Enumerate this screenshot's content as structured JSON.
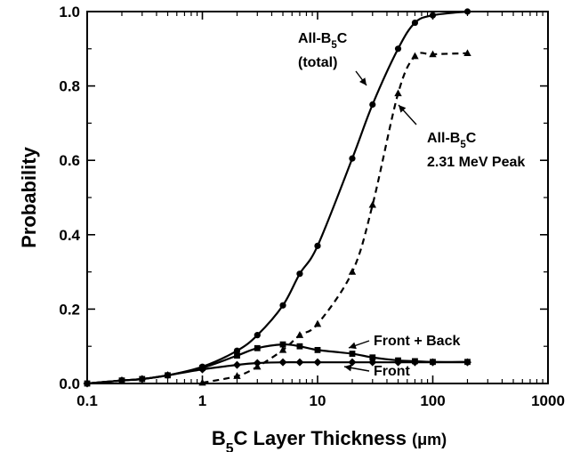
{
  "chart_data": {
    "type": "line",
    "x_scale": "log",
    "xlim": [
      0.1,
      1000
    ],
    "ylim": [
      0.0,
      1.0
    ],
    "x_ticks": [
      "0.1",
      "1",
      "10",
      "100",
      "1000"
    ],
    "y_ticks": [
      "0.0",
      "0.2",
      "0.4",
      "0.6",
      "0.8",
      "1.0"
    ],
    "grid": false,
    "xlabel": {
      "main": "B",
      "sub": "5",
      "rest": "C Layer Thickness ",
      "unit": "(μm)"
    },
    "ylabel": "Probability",
    "series": [
      {
        "marker": "circle",
        "line": "solid",
        "x": [
          0.1,
          0.2,
          0.3,
          0.5,
          1,
          2,
          3,
          5,
          7,
          10,
          20,
          30,
          50,
          70,
          100,
          200
        ],
        "y": [
          0.0,
          0.008,
          0.012,
          0.022,
          0.045,
          0.088,
          0.13,
          0.21,
          0.295,
          0.37,
          0.605,
          0.75,
          0.9,
          0.97,
          0.99,
          1.0
        ]
      },
      {
        "marker": "triangle",
        "line": "dashed",
        "x": [
          1,
          2,
          3,
          5,
          7,
          10,
          20,
          30,
          50,
          70,
          100,
          200
        ],
        "y": [
          0.002,
          0.02,
          0.045,
          0.09,
          0.13,
          0.16,
          0.3,
          0.48,
          0.78,
          0.88,
          0.885,
          0.888
        ]
      },
      {
        "marker": "square",
        "line": "solid",
        "x": [
          0.1,
          0.2,
          0.3,
          0.5,
          1,
          2,
          3,
          5,
          7,
          10,
          20,
          30,
          50,
          70,
          100,
          200
        ],
        "y": [
          0.0,
          0.008,
          0.012,
          0.022,
          0.042,
          0.075,
          0.095,
          0.105,
          0.1,
          0.09,
          0.08,
          0.07,
          0.062,
          0.06,
          0.058,
          0.058
        ]
      },
      {
        "marker": "diamond",
        "line": "solid",
        "x": [
          0.1,
          0.2,
          0.3,
          0.5,
          1,
          2,
          3,
          5,
          7,
          10,
          20,
          30,
          50,
          70,
          100,
          200
        ],
        "y": [
          0.0,
          0.008,
          0.012,
          0.022,
          0.038,
          0.05,
          0.055,
          0.057,
          0.057,
          0.057,
          0.057,
          0.057,
          0.057,
          0.057,
          0.057,
          0.057
        ]
      }
    ],
    "annotations": [
      {
        "lines": [
          {
            "main": "All-B",
            "sub": "5",
            "rest": "C"
          },
          {
            "main": "(total)"
          }
        ]
      },
      {
        "lines": [
          {
            "main": "All-B",
            "sub": "5",
            "rest": "C"
          },
          {
            "main": "2.31 MeV Peak"
          }
        ]
      },
      {
        "lines": [
          {
            "main": "Front + Back"
          }
        ]
      },
      {
        "lines": [
          {
            "main": "Front"
          }
        ]
      }
    ],
    "colors": {
      "line": "#000000",
      "background": "#ffffff"
    }
  }
}
